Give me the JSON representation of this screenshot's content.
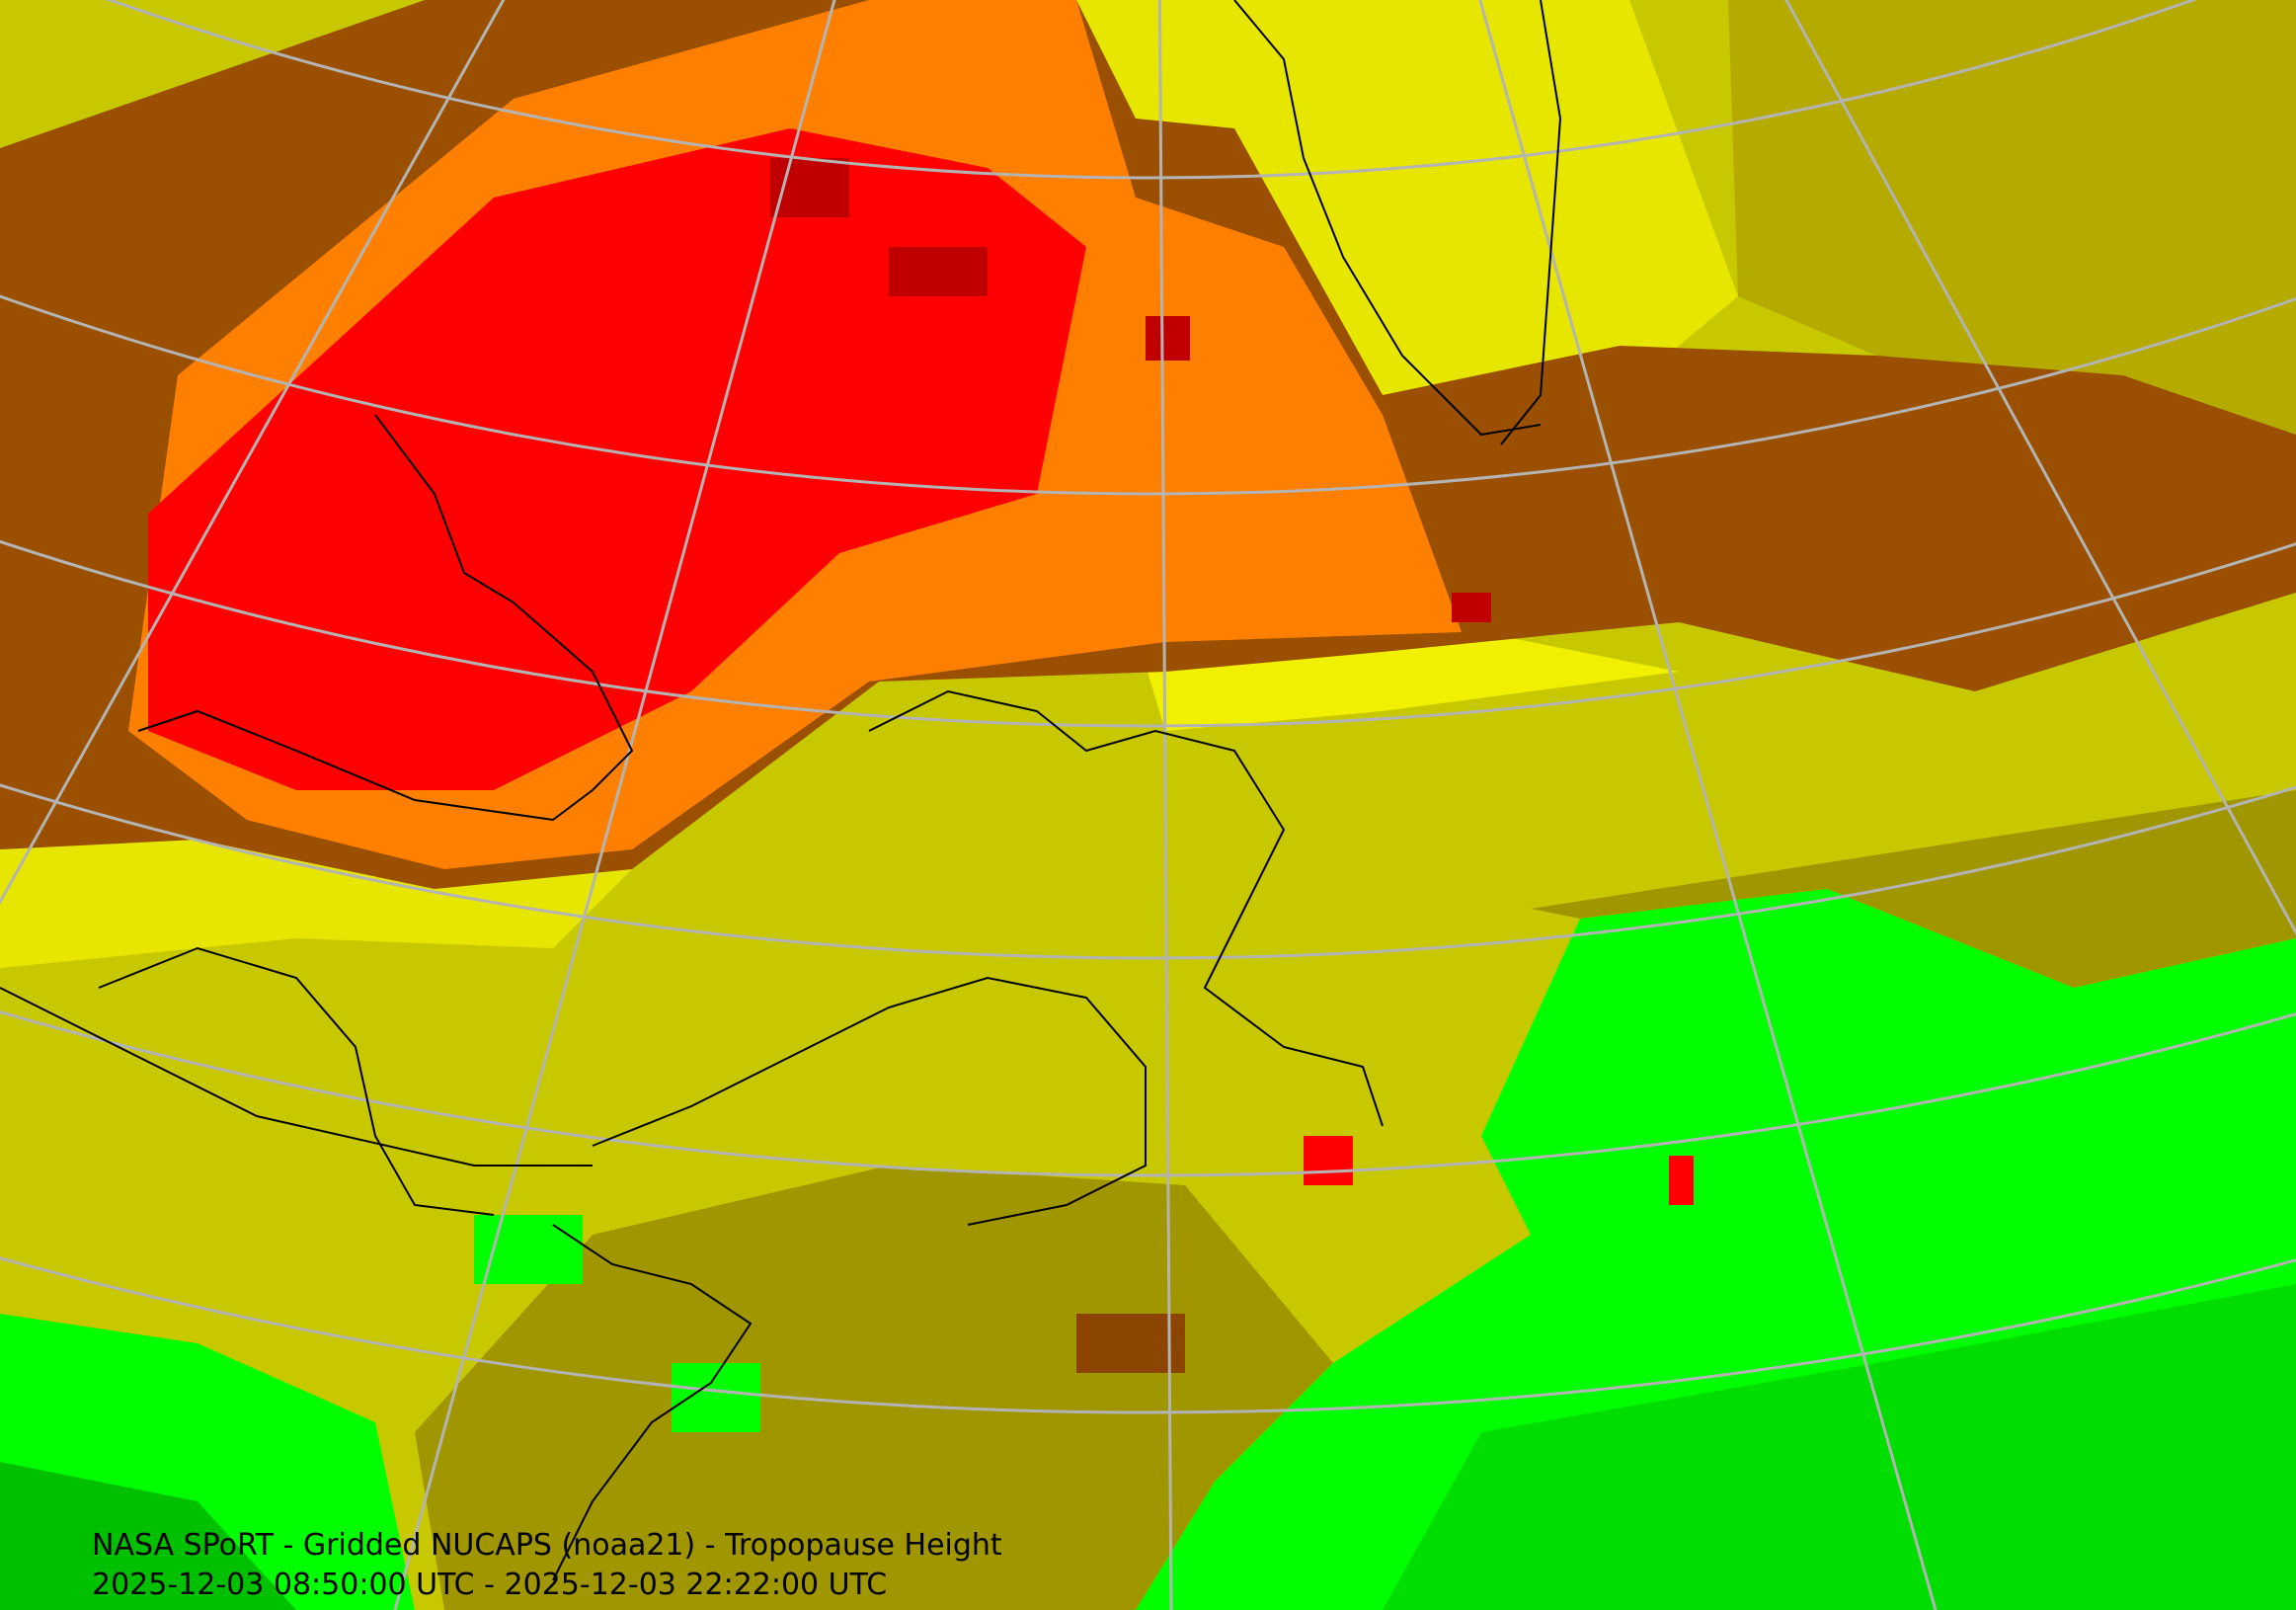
{
  "caption": {
    "title": "NASA SPoRT - Gridded NUCAPS (noaa21) - Tropopause Height",
    "time_range": "2025-12-03 08:50:00 UTC - 2025-12-03 22:22:00 UTC"
  }
}
